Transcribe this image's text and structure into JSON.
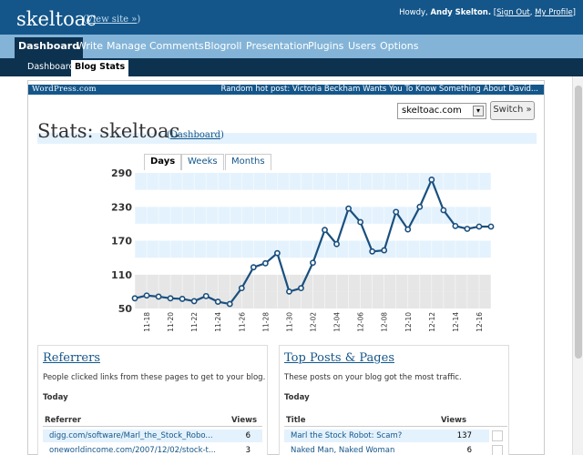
{
  "header": {
    "site_title": "skeltoac",
    "view_site": "View site »",
    "howdy": "Howdy,",
    "user": "Andy Skelton.",
    "sign_out": "Sign Out",
    "profile": "My Profile"
  },
  "menu": [
    "Dashboard",
    "Write",
    "Manage",
    "Comments",
    "Blogroll",
    "Presentation",
    "Plugins",
    "Users",
    "Options"
  ],
  "submenu": [
    "Dashboard",
    "Blog Stats"
  ],
  "statsbar": {
    "logo": "WordPress.com",
    "hot_post": "Random hot post: Victoria Beckham Wants You To Know Something About David..."
  },
  "blog_select": {
    "value": "skeltoac.com",
    "switch_label": "Switch »"
  },
  "page_title": "Stats: skeltoac",
  "dashboard_link": "Dashboard",
  "tabs": [
    "Days",
    "Weeks",
    "Months"
  ],
  "colors": {
    "header": "#14568a",
    "nav": "#83b4d8",
    "subnav": "#0d324f",
    "line": "#1a4f7e",
    "band": "#e4f2fd"
  },
  "chart_data": {
    "type": "line",
    "title": "",
    "xlabel": "",
    "ylabel": "",
    "ylim": [
      50,
      290
    ],
    "yticks": [
      50,
      110,
      170,
      230,
      290
    ],
    "x": [
      "11-17",
      "11-18",
      "11-19",
      "11-20",
      "11-21",
      "11-22",
      "11-23",
      "11-24",
      "11-25",
      "11-26",
      "11-27",
      "11-28",
      "11-29",
      "11-30",
      "12-01",
      "12-02",
      "12-03",
      "12-04",
      "12-05",
      "12-06",
      "12-07",
      "12-08",
      "12-09",
      "12-10",
      "12-11",
      "12-12",
      "12-13",
      "12-14",
      "12-15",
      "12-16",
      "12-17"
    ],
    "x_tick_labels": [
      "11-18",
      "11-20",
      "11-22",
      "11-24",
      "11-26",
      "11-28",
      "11-30",
      "12-02",
      "12-04",
      "12-06",
      "12-08",
      "12-10",
      "12-12",
      "12-14",
      "12-16"
    ],
    "values": [
      68,
      73,
      71,
      68,
      67,
      63,
      72,
      62,
      58,
      86,
      123,
      130,
      148,
      80,
      86,
      131,
      189,
      164,
      227,
      203,
      151,
      153,
      221,
      190,
      230,
      278,
      224,
      196,
      191,
      195,
      195
    ],
    "grid": true
  },
  "referrers": {
    "title": "Referrers",
    "desc": "People clicked links from these pages to get to your blog.",
    "today": "Today",
    "col_ref": "Referrer",
    "col_views": "Views",
    "rows": [
      {
        "ref": "digg.com/software/Marl_the_Stock_Robo...",
        "views": "6"
      },
      {
        "ref": "oneworldincome.com/2007/12/02/stock-t...",
        "views": "3"
      }
    ]
  },
  "top_posts": {
    "title": "Top Posts & Pages",
    "desc": "These posts on your blog got the most traffic.",
    "today": "Today",
    "col_title": "Title",
    "col_views": "Views",
    "rows": [
      {
        "title": "Marl the Stock Robot: Scam?",
        "views": "137"
      },
      {
        "title": "Naked Man, Naked Woman",
        "views": "6"
      }
    ]
  }
}
